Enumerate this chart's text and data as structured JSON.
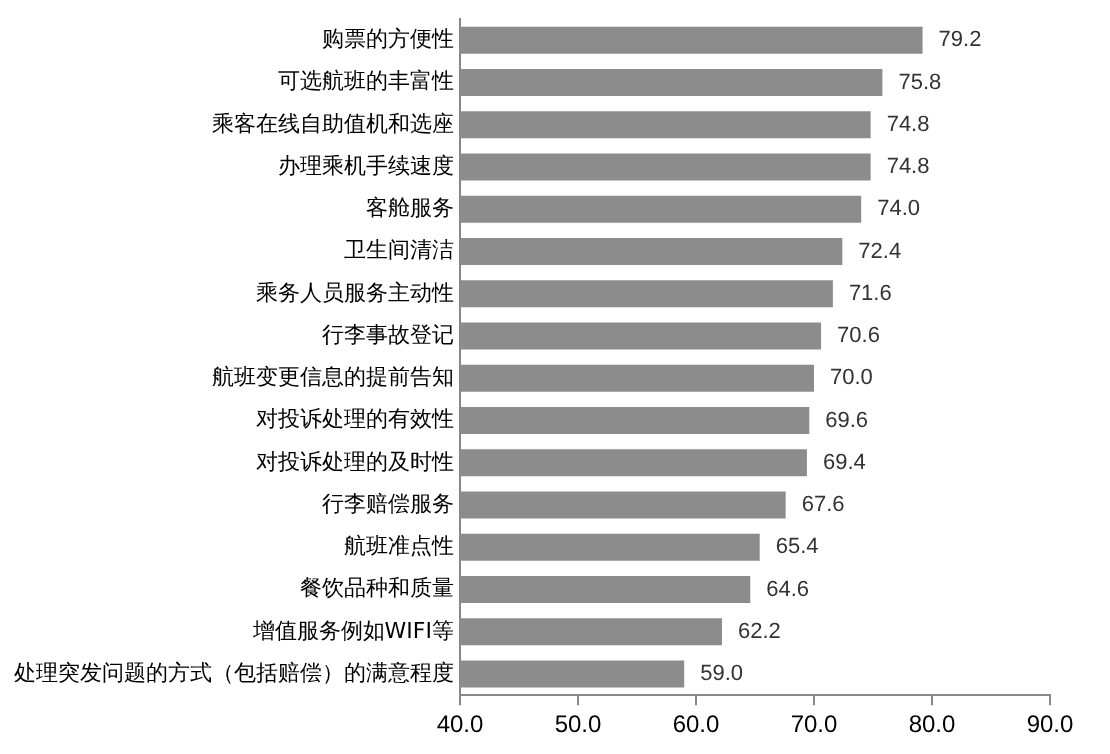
{
  "chart_data": {
    "type": "bar",
    "orientation": "horizontal",
    "categories": [
      "购票的方便性",
      "可选航班的丰富性",
      "乘客在线自助值机和选座",
      "办理乘机手续速度",
      "客舱服务",
      "卫生间清洁",
      "乘务人员服务主动性",
      "行李事故登记",
      "航班变更信息的提前告知",
      "对投诉处理的有效性",
      "对投诉处理的及时性",
      "行李赔偿服务",
      "航班准点性",
      "餐饮品种和质量",
      "增值服务例如WIFI等",
      "处理突发问题的方式（包括赔偿）的满意程度"
    ],
    "values": [
      79.2,
      75.8,
      74.8,
      74.8,
      74.0,
      72.4,
      71.6,
      70.6,
      70.0,
      69.6,
      69.4,
      67.6,
      65.4,
      64.6,
      62.2,
      59.0
    ],
    "value_labels": [
      "79.2",
      "75.8",
      "74.8",
      "74.8",
      "74.0",
      "72.4",
      "71.6",
      "70.6",
      "70.0",
      "69.6",
      "69.4",
      "67.6",
      "65.4",
      "64.6",
      "62.2",
      "59.0"
    ],
    "color": "#8c8c8c",
    "xlim": [
      40,
      90
    ],
    "xticks": [
      {
        "value": 40,
        "label": "40.0"
      },
      {
        "value": 50,
        "label": "50.0"
      },
      {
        "value": 60,
        "label": "60.0"
      },
      {
        "value": 70,
        "label": "70.0"
      },
      {
        "value": 80,
        "label": "80.0"
      },
      {
        "value": 90,
        "label": "90.0"
      }
    ],
    "grid": false,
    "legend": false
  }
}
